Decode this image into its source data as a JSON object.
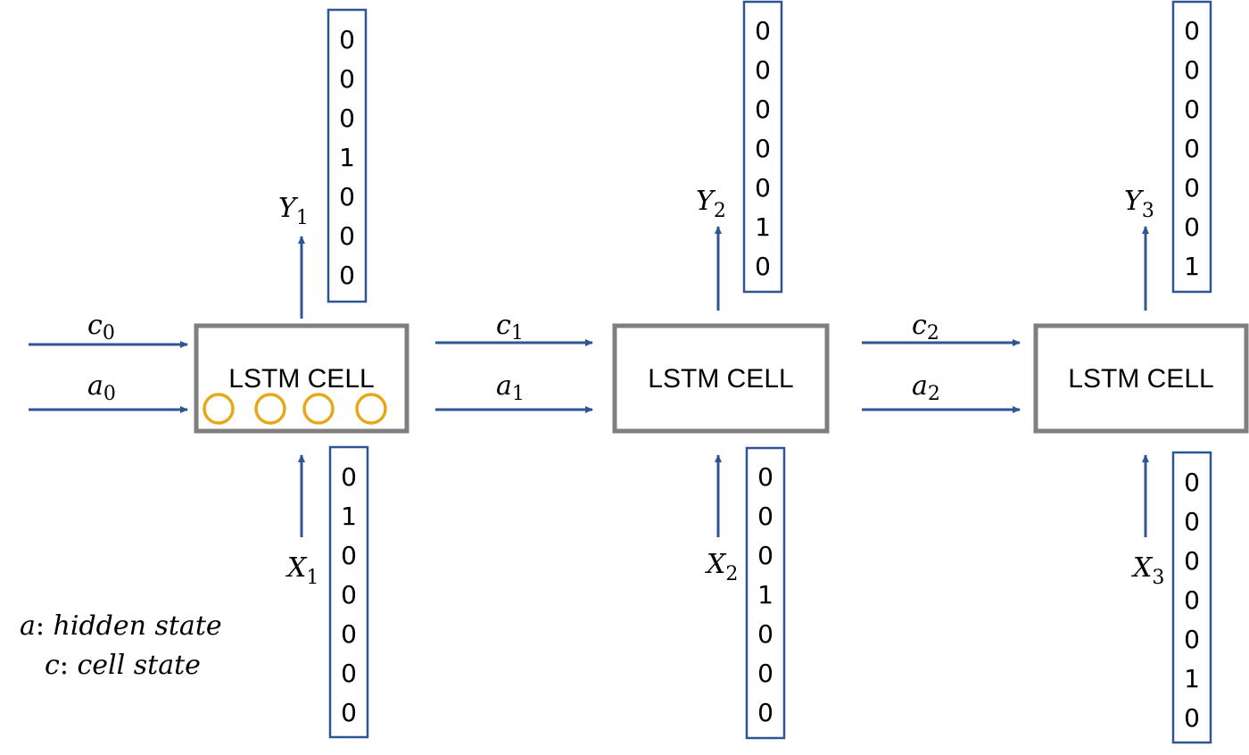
{
  "colors": {
    "arrow": "#2f5597",
    "cell_border": "#7f7f7f",
    "vector_border": "#2f5597",
    "gate_circle": "#e6a817"
  },
  "cells": [
    {
      "label": "LSTM CELL",
      "gate_circles": 4,
      "output": {
        "var": "Y",
        "sub": "1",
        "vector": [
          "0",
          "0",
          "0",
          "1",
          "0",
          "0",
          "0"
        ]
      },
      "input": {
        "var": "X",
        "sub": "1",
        "vector": [
          "0",
          "1",
          "0",
          "0",
          "0",
          "0",
          "0"
        ]
      }
    },
    {
      "label": "LSTM CELL",
      "gate_circles": 0,
      "output": {
        "var": "Y",
        "sub": "2",
        "vector": [
          "0",
          "0",
          "0",
          "0",
          "0",
          "1",
          "0"
        ]
      },
      "input": {
        "var": "X",
        "sub": "2",
        "vector": [
          "0",
          "0",
          "0",
          "1",
          "0",
          "0",
          "0"
        ]
      }
    },
    {
      "label": "LSTM CELL",
      "gate_circles": 0,
      "output": {
        "var": "Y",
        "sub": "3",
        "vector": [
          "0",
          "0",
          "0",
          "0",
          "0",
          "0",
          "1"
        ]
      },
      "input": {
        "var": "X",
        "sub": "3",
        "vector": [
          "0",
          "0",
          "0",
          "0",
          "0",
          "1",
          "0"
        ]
      }
    }
  ],
  "connections": [
    {
      "c": {
        "var": "c",
        "sub": "0"
      },
      "a": {
        "var": "a",
        "sub": "0"
      }
    },
    {
      "c": {
        "var": "c",
        "sub": "1"
      },
      "a": {
        "var": "a",
        "sub": "1"
      }
    },
    {
      "c": {
        "var": "c",
        "sub": "2"
      },
      "a": {
        "var": "a",
        "sub": "2"
      }
    }
  ],
  "legend": [
    {
      "symbol": "a",
      "text": "hidden state"
    },
    {
      "symbol": "c",
      "text": "cell state"
    }
  ]
}
